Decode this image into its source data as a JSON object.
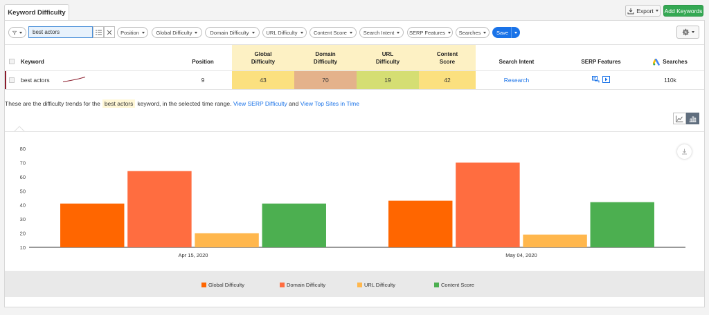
{
  "header": {
    "tab_title": "Keyword Difficulty",
    "export_label": "Export",
    "add_keywords_label": "Add Keywords"
  },
  "filters": {
    "search_value": "best actors",
    "pills": [
      "Position",
      "Global Difficulty",
      "Domain Difficulty",
      "URL Difficulty",
      "Content Score",
      "Search Intent",
      "SERP Features",
      "Searches"
    ],
    "save_label": "Save"
  },
  "table": {
    "columns": {
      "keyword": "Keyword",
      "position": "Position",
      "global_difficulty": "Global\nDifficulty",
      "domain_difficulty": "Domain\nDifficulty",
      "url_difficulty": "URL\nDifficulty",
      "content_score": "Content\nScore",
      "search_intent": "Search Intent",
      "serp_features": "SERP Features",
      "searches": "Searches"
    },
    "row": {
      "keyword": "best actors",
      "position": "9",
      "global_difficulty": "43",
      "domain_difficulty": "70",
      "url_difficulty": "19",
      "content_score": "42",
      "search_intent": "Research",
      "searches": "110k"
    },
    "colors": {
      "header_highlight": "#fdf1c4",
      "global": "#fbe07f",
      "domain": "#e4b28b",
      "url": "#d5de73",
      "content": "#fbe07f"
    }
  },
  "trend": {
    "prefix": "These are the difficulty trends for the",
    "keyword": "best actors",
    "middle": "keyword, in the selected time range.",
    "link1": "View SERP Difficulty",
    "and": "and",
    "link2": "View Top Sites in Time"
  },
  "chart_data": {
    "type": "bar",
    "categories": [
      "Apr 15, 2020",
      "May 04, 2020"
    ],
    "series": [
      {
        "name": "Global Difficulty",
        "color": "#ff6600",
        "values": [
          41,
          43
        ]
      },
      {
        "name": "Domain Difficulty",
        "color": "#ff6d40",
        "values": [
          64,
          70
        ]
      },
      {
        "name": "URL Difficulty",
        "color": "#ffb74d",
        "values": [
          20,
          19
        ]
      },
      {
        "name": "Content Score",
        "color": "#4caf50",
        "values": [
          41,
          42
        ]
      }
    ],
    "yticks": [
      "10",
      "20",
      "30",
      "40",
      "50",
      "60",
      "70",
      "80"
    ],
    "ylim": [
      10,
      80
    ],
    "grid": false,
    "legend": "bottom"
  }
}
